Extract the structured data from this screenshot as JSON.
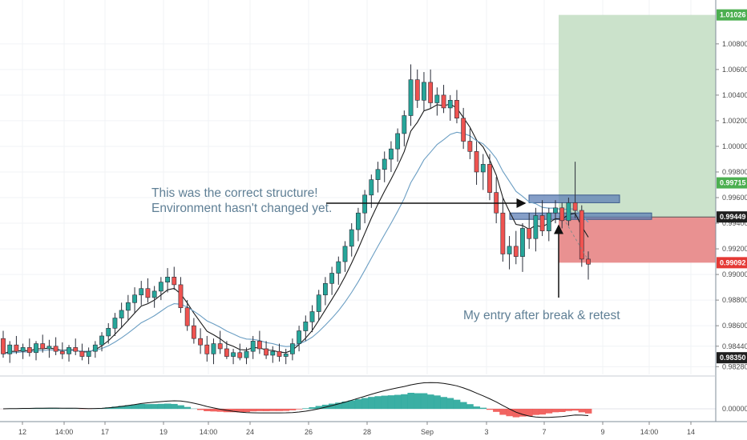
{
  "chart_data": {
    "type": "candlestick",
    "y_axis": {
      "min": 0.9822,
      "max": 1.0108,
      "ticks": [
        "1.00800",
        "1.00600",
        "1.00400",
        "1.00200",
        "1.00000",
        "0.99800",
        "0.99600",
        "0.99400",
        "0.99200",
        "0.99000",
        "0.98800",
        "0.98600",
        "0.98440",
        "0.98280"
      ]
    },
    "x_axis": {
      "ticks": [
        "12",
        "14:00",
        "17",
        "19",
        "14:00",
        "24",
        "26",
        "28",
        "Sep",
        "3",
        "7",
        "9",
        "14:00",
        "14"
      ]
    },
    "price_tags": [
      {
        "label": "1.01026",
        "value": 1.01026,
        "color": "#4caf50"
      },
      {
        "label": "0.99715",
        "value": 0.99715,
        "color": "#4caf50"
      },
      {
        "label": "0.99449",
        "value": 0.99449,
        "color": "#1f1f1f"
      },
      {
        "label": "0.99092",
        "value": 0.99092,
        "color": "#e53935"
      },
      {
        "label": "0.98350",
        "value": 0.9835,
        "color": "#1f1f1f"
      }
    ],
    "oscillator_tick": "0.00000",
    "trade": {
      "entry": 0.99449,
      "target": 1.01026,
      "stop": 0.99092,
      "profit_color": "#c8e0c8",
      "loss_color": "#e88b8b"
    },
    "zones": [
      {
        "top": 0.9962,
        "bottom": 0.9956
      },
      {
        "top": 0.9948,
        "bottom": 0.9943
      }
    ],
    "series": [
      {
        "name": "",
        "type": "ema-fast",
        "color": "#1a1a1a"
      },
      {
        "name": "",
        "type": "ema-slow",
        "color": "#6b9ec3"
      }
    ],
    "candle_colors": {
      "up": "#26a69a",
      "down": "#ef5350"
    },
    "candles_ohlc": [
      [
        0.985,
        0.9856,
        0.9835,
        0.9838
      ],
      [
        0.9838,
        0.9848,
        0.9831,
        0.9845
      ],
      [
        0.9845,
        0.9852,
        0.9838,
        0.984
      ],
      [
        0.984,
        0.9846,
        0.9834,
        0.9843
      ],
      [
        0.9843,
        0.985,
        0.9836,
        0.9839
      ],
      [
        0.9839,
        0.9848,
        0.9833,
        0.9846
      ],
      [
        0.9846,
        0.9853,
        0.9839,
        0.9842
      ],
      [
        0.9842,
        0.9849,
        0.9835,
        0.9844
      ],
      [
        0.9844,
        0.9851,
        0.9837,
        0.984
      ],
      [
        0.984,
        0.9847,
        0.9834,
        0.9838
      ],
      [
        0.9838,
        0.9845,
        0.9832,
        0.9843
      ],
      [
        0.9843,
        0.985,
        0.9837,
        0.984
      ],
      [
        0.984,
        0.9846,
        0.9833,
        0.9836
      ],
      [
        0.9836,
        0.9843,
        0.983,
        0.984
      ],
      [
        0.984,
        0.9848,
        0.9835,
        0.9845
      ],
      [
        0.9845,
        0.9855,
        0.984,
        0.9852
      ],
      [
        0.9852,
        0.9862,
        0.9846,
        0.9858
      ],
      [
        0.9858,
        0.987,
        0.9852,
        0.9866
      ],
      [
        0.9866,
        0.9878,
        0.9858,
        0.9872
      ],
      [
        0.9872,
        0.9884,
        0.9864,
        0.9878
      ],
      [
        0.9878,
        0.989,
        0.987,
        0.9884
      ],
      [
        0.9884,
        0.9895,
        0.9876,
        0.9889
      ],
      [
        0.9889,
        0.9897,
        0.9878,
        0.9882
      ],
      [
        0.9882,
        0.9891,
        0.9874,
        0.9887
      ],
      [
        0.9887,
        0.9898,
        0.988,
        0.9894
      ],
      [
        0.9894,
        0.9905,
        0.9886,
        0.9898
      ],
      [
        0.9898,
        0.9906,
        0.9888,
        0.9892
      ],
      [
        0.9892,
        0.9898,
        0.987,
        0.9874
      ],
      [
        0.9874,
        0.988,
        0.9856,
        0.986
      ],
      [
        0.986,
        0.9866,
        0.9846,
        0.985
      ],
      [
        0.985,
        0.9858,
        0.9838,
        0.9845
      ],
      [
        0.9845,
        0.9852,
        0.9832,
        0.9838
      ],
      [
        0.9838,
        0.985,
        0.983,
        0.9846
      ],
      [
        0.9846,
        0.9856,
        0.9838,
        0.9842
      ],
      [
        0.9842,
        0.9848,
        0.9834,
        0.9836
      ],
      [
        0.9836,
        0.9842,
        0.983,
        0.9839
      ],
      [
        0.9839,
        0.9846,
        0.9833,
        0.9835
      ],
      [
        0.9835,
        0.9843,
        0.983,
        0.984
      ],
      [
        0.984,
        0.9852,
        0.9834,
        0.9848
      ],
      [
        0.9848,
        0.9856,
        0.9838,
        0.9842
      ],
      [
        0.9842,
        0.9848,
        0.9834,
        0.9837
      ],
      [
        0.9837,
        0.9844,
        0.9831,
        0.984
      ],
      [
        0.984,
        0.9846,
        0.9832,
        0.9836
      ],
      [
        0.9836,
        0.9842,
        0.983,
        0.9838
      ],
      [
        0.9838,
        0.985,
        0.9833,
        0.9846
      ],
      [
        0.9846,
        0.986,
        0.984,
        0.9856
      ],
      [
        0.9856,
        0.9868,
        0.9848,
        0.9863
      ],
      [
        0.9863,
        0.9876,
        0.9855,
        0.9871
      ],
      [
        0.9871,
        0.9888,
        0.9864,
        0.9884
      ],
      [
        0.9884,
        0.9898,
        0.9876,
        0.9893
      ],
      [
        0.9893,
        0.9906,
        0.9884,
        0.9901
      ],
      [
        0.9901,
        0.9914,
        0.9892,
        0.991
      ],
      [
        0.991,
        0.9926,
        0.9902,
        0.9922
      ],
      [
        0.9922,
        0.994,
        0.9914,
        0.9935
      ],
      [
        0.9935,
        0.9952,
        0.9926,
        0.9948
      ],
      [
        0.9948,
        0.9966,
        0.994,
        0.9962
      ],
      [
        0.9962,
        0.9978,
        0.9952,
        0.9974
      ],
      [
        0.9974,
        0.9988,
        0.9964,
        0.9982
      ],
      [
        0.9982,
        0.9996,
        0.9972,
        0.999
      ],
      [
        0.999,
        1.0004,
        0.998,
        0.9998
      ],
      [
        0.9998,
        1.0014,
        0.9988,
        1.001
      ],
      [
        1.001,
        1.0028,
        1.0,
        1.0024
      ],
      [
        1.0024,
        1.0064,
        1.0016,
        1.0052
      ],
      [
        1.0052,
        1.006,
        1.003,
        1.0036
      ],
      [
        1.0036,
        1.0058,
        1.0028,
        1.005
      ],
      [
        1.005,
        1.006,
        1.003,
        1.0034
      ],
      [
        1.0034,
        1.0046,
        1.0024,
        1.004
      ],
      [
        1.004,
        1.0048,
        1.0026,
        1.003
      ],
      [
        1.003,
        1.004,
        1.002,
        1.0036
      ],
      [
        1.0036,
        1.0044,
        1.0018,
        1.0022
      ],
      [
        1.0022,
        1.003,
        0.9998,
        1.0004
      ],
      [
        1.0004,
        1.0014,
        0.999,
        0.9996
      ],
      [
        0.9996,
        1.0004,
        0.997,
        0.998
      ],
      [
        0.998,
        0.9994,
        0.9966,
        0.9986
      ],
      [
        0.9986,
        0.9994,
        0.9958,
        0.9964
      ],
      [
        0.9964,
        0.9976,
        0.994,
        0.9948
      ],
      [
        0.9948,
        0.996,
        0.991,
        0.9916
      ],
      [
        0.9916,
        0.993,
        0.9904,
        0.9922
      ],
      [
        0.9922,
        0.9934,
        0.9908,
        0.9914
      ],
      [
        0.9914,
        0.994,
        0.9902,
        0.9936
      ],
      [
        0.9936,
        0.9948,
        0.992,
        0.9928
      ],
      [
        0.9928,
        0.9952,
        0.9918,
        0.9946
      ],
      [
        0.9946,
        0.9958,
        0.993,
        0.9934
      ],
      [
        0.9934,
        0.9952,
        0.9926,
        0.9948
      ],
      [
        0.9948,
        0.9958,
        0.994,
        0.9952
      ],
      [
        0.9952,
        0.9956,
        0.9936,
        0.9942
      ],
      [
        0.9942,
        0.996,
        0.9938,
        0.9956
      ],
      [
        0.9956,
        0.9988,
        0.9944,
        0.995
      ],
      [
        0.995,
        0.9954,
        0.9906,
        0.9912
      ],
      [
        0.9912,
        0.9918,
        0.9896,
        0.9908
      ]
    ]
  },
  "annotations": {
    "structure_text_line1": "This was the correct structure!",
    "structure_text_line2": "Environment hasn't changed yet.",
    "entry_text": "My entry after break & retest"
  }
}
